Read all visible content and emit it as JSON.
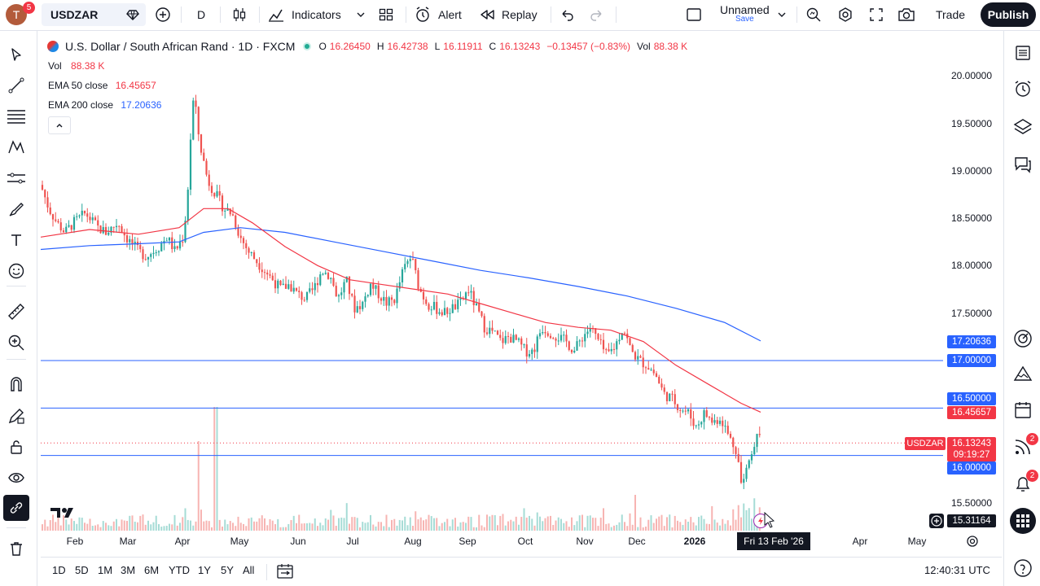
{
  "topbar": {
    "avatar_letter": "T",
    "avatar_badge": "5",
    "symbol": "USDZAR",
    "interval": "D",
    "indicators_label": "Indicators",
    "alert_label": "Alert",
    "replay_label": "Replay",
    "layout_name": "Unnamed",
    "layout_save": "Save",
    "trade_label": "Trade",
    "publish_label": "Publish"
  },
  "legend": {
    "title": "U.S. Dollar / South African Rand · 1D · FXCM",
    "o_label": "O",
    "o_value": "16.26450",
    "h_label": "H",
    "h_value": "16.42738",
    "l_label": "L",
    "l_value": "16.11911",
    "c_label": "C",
    "c_value": "16.13243",
    "change": "−0.13457 (−0.83%)",
    "vol_label": "Vol",
    "vol_value": "88.38 K",
    "vol_row_label": "Vol",
    "vol_row_value": "88.38 K",
    "ema50_label": "EMA 50 close",
    "ema50_value": "16.45657",
    "ema200_label": "EMA 200 close",
    "ema200_value": "17.20636"
  },
  "price_axis": {
    "ticks": [
      "20.00000",
      "19.50000",
      "19.00000",
      "18.50000",
      "18.00000",
      "17.50000",
      "15.50000"
    ],
    "labels": {
      "ema200": "17.20636",
      "line17": "17.00000",
      "line165": "16.50000",
      "ema50": "16.45657",
      "symbol_tag": "USDZAR",
      "last": "16.13243",
      "countdown": "09:19:27",
      "line16": "16.00000",
      "cursor": "15.31164"
    }
  },
  "time_axis": {
    "ticks": [
      "Feb",
      "Mar",
      "Apr",
      "May",
      "Jun",
      "Jul",
      "Aug",
      "Sep",
      "Oct",
      "Nov",
      "Dec",
      "2026",
      "Apr",
      "May"
    ],
    "cursor_date": "Fri 13 Feb '26"
  },
  "bottombar": {
    "ranges": [
      "1D",
      "5D",
      "1M",
      "3M",
      "6M",
      "YTD",
      "1Y",
      "5Y",
      "All"
    ],
    "clock": "12:40:31 UTC"
  },
  "rightbar": {
    "news_badge": "2",
    "alerts_badge": "2"
  },
  "colors": {
    "up": "#26a69a",
    "down": "#ef5350",
    "ema50": "#f23645",
    "ema200": "#2962ff",
    "hline": "#2962ff"
  },
  "chart_data": {
    "type": "candlestick",
    "title": "U.S. Dollar / South African Rand · 1D · FXCM",
    "ylim": [
      15.31,
      20.0
    ],
    "hlines": [
      17.0,
      16.5,
      16.0
    ],
    "close_points": [
      [
        0,
        18.85
      ],
      [
        10,
        18.6
      ],
      [
        20,
        18.45
      ],
      [
        30,
        18.35
      ],
      [
        40,
        18.45
      ],
      [
        55,
        18.55
      ],
      [
        70,
        18.4
      ],
      [
        80,
        18.35
      ],
      [
        95,
        18.45
      ],
      [
        105,
        18.3
      ],
      [
        120,
        18.15
      ],
      [
        130,
        18.1
      ],
      [
        145,
        18.2
      ],
      [
        155,
        18.3
      ],
      [
        165,
        18.15
      ],
      [
        175,
        18.3
      ],
      [
        180,
        18.7
      ],
      [
        185,
        19.5
      ],
      [
        188,
        19.8
      ],
      [
        195,
        19.3
      ],
      [
        205,
        18.9
      ],
      [
        215,
        18.75
      ],
      [
        225,
        18.6
      ],
      [
        235,
        18.55
      ],
      [
        245,
        18.3
      ],
      [
        255,
        18.15
      ],
      [
        265,
        18.05
      ],
      [
        275,
        17.95
      ],
      [
        285,
        17.85
      ],
      [
        295,
        17.75
      ],
      [
        305,
        17.8
      ],
      [
        315,
        17.7
      ],
      [
        325,
        17.65
      ],
      [
        335,
        17.75
      ],
      [
        345,
        17.95
      ],
      [
        355,
        17.9
      ],
      [
        365,
        17.65
      ],
      [
        375,
        17.85
      ],
      [
        385,
        17.55
      ],
      [
        395,
        17.6
      ],
      [
        405,
        17.8
      ],
      [
        415,
        17.7
      ],
      [
        425,
        17.6
      ],
      [
        435,
        17.65
      ],
      [
        445,
        17.95
      ],
      [
        455,
        18.1
      ],
      [
        465,
        17.75
      ],
      [
        475,
        17.6
      ],
      [
        485,
        17.55
      ],
      [
        495,
        17.5
      ],
      [
        505,
        17.55
      ],
      [
        515,
        17.6
      ],
      [
        525,
        17.75
      ],
      [
        535,
        17.55
      ],
      [
        545,
        17.35
      ],
      [
        555,
        17.3
      ],
      [
        565,
        17.2
      ],
      [
        575,
        17.25
      ],
      [
        585,
        17.2
      ],
      [
        595,
        17.1
      ],
      [
        605,
        17.1
      ],
      [
        615,
        17.35
      ],
      [
        625,
        17.3
      ],
      [
        635,
        17.25
      ],
      [
        645,
        17.2
      ],
      [
        655,
        17.1
      ],
      [
        665,
        17.25
      ],
      [
        675,
        17.35
      ],
      [
        685,
        17.2
      ],
      [
        695,
        17.05
      ],
      [
        705,
        17.15
      ],
      [
        715,
        17.35
      ],
      [
        725,
        17.1
      ],
      [
        735,
        17.0
      ],
      [
        745,
        16.95
      ],
      [
        755,
        16.85
      ],
      [
        765,
        16.65
      ],
      [
        775,
        16.6
      ],
      [
        785,
        16.5
      ],
      [
        795,
        16.45
      ],
      [
        805,
        16.3
      ],
      [
        815,
        16.45
      ],
      [
        825,
        16.35
      ],
      [
        835,
        16.4
      ],
      [
        845,
        16.2
      ],
      [
        855,
        16.05
      ],
      [
        860,
        15.7
      ],
      [
        865,
        15.85
      ],
      [
        870,
        15.95
      ],
      [
        875,
        16.1
      ],
      [
        880,
        16.3
      ],
      [
        884,
        16.13
      ]
    ],
    "ema50_points": [
      [
        0,
        18.3
      ],
      [
        60,
        18.38
      ],
      [
        120,
        18.33
      ],
      [
        170,
        18.4
      ],
      [
        200,
        18.6
      ],
      [
        230,
        18.6
      ],
      [
        260,
        18.45
      ],
      [
        300,
        18.2
      ],
      [
        340,
        18.0
      ],
      [
        380,
        17.85
      ],
      [
        420,
        17.8
      ],
      [
        460,
        17.75
      ],
      [
        500,
        17.7
      ],
      [
        540,
        17.6
      ],
      [
        580,
        17.5
      ],
      [
        620,
        17.4
      ],
      [
        660,
        17.35
      ],
      [
        700,
        17.32
      ],
      [
        740,
        17.2
      ],
      [
        780,
        16.95
      ],
      [
        820,
        16.75
      ],
      [
        860,
        16.55
      ],
      [
        884,
        16.45657
      ]
    ],
    "ema200_points": [
      [
        0,
        18.17
      ],
      [
        60,
        18.21
      ],
      [
        120,
        18.23
      ],
      [
        170,
        18.25
      ],
      [
        200,
        18.35
      ],
      [
        245,
        18.4
      ],
      [
        300,
        18.35
      ],
      [
        360,
        18.25
      ],
      [
        420,
        18.15
      ],
      [
        480,
        18.05
      ],
      [
        540,
        17.95
      ],
      [
        600,
        17.87
      ],
      [
        660,
        17.78
      ],
      [
        720,
        17.68
      ],
      [
        780,
        17.55
      ],
      [
        840,
        17.4
      ],
      [
        884,
        17.20636
      ]
    ]
  }
}
